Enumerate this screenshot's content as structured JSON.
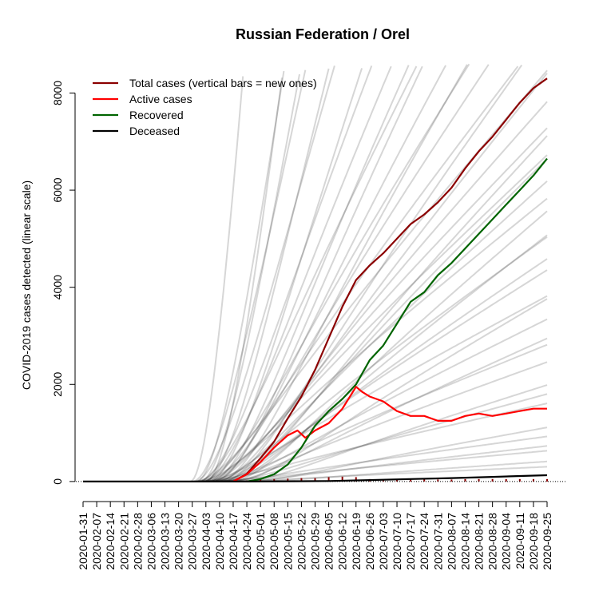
{
  "chart_data": {
    "type": "line",
    "title": "Russian Federation / Orel",
    "ylabel": "COVID-2019 cases detected (linear scale)",
    "xlabel": "",
    "y_scale": "linear",
    "ylim": [
      -150,
      8600
    ],
    "x_range": [
      "2020-01-31",
      "2020-09-25"
    ],
    "x_ticks": [
      "2020-01-31",
      "2020-02-07",
      "2020-02-14",
      "2020-02-21",
      "2020-02-28",
      "2020-03-06",
      "2020-03-13",
      "2020-03-20",
      "2020-03-27",
      "2020-04-03",
      "2020-04-10",
      "2020-04-17",
      "2020-04-24",
      "2020-05-01",
      "2020-05-08",
      "2020-05-15",
      "2020-05-22",
      "2020-05-29",
      "2020-06-05",
      "2020-06-12",
      "2020-06-19",
      "2020-06-26",
      "2020-07-03",
      "2020-07-10",
      "2020-07-17",
      "2020-07-24",
      "2020-07-31",
      "2020-08-07",
      "2020-08-14",
      "2020-08-21",
      "2020-08-28",
      "2020-09-04",
      "2020-09-11",
      "2020-09-18",
      "2020-09-25"
    ],
    "y_ticks": [
      0,
      2000,
      4000,
      6000,
      8000
    ],
    "legend_position": "top-left",
    "grid": false,
    "series": [
      {
        "name": "Total cases (vertical bars = new ones)",
        "color": "#8b0000",
        "points": [
          [
            "2020-04-17",
            0
          ],
          [
            "2020-04-24",
            160
          ],
          [
            "2020-05-01",
            480
          ],
          [
            "2020-05-08",
            820
          ],
          [
            "2020-05-15",
            1300
          ],
          [
            "2020-05-22",
            1750
          ],
          [
            "2020-05-29",
            2300
          ],
          [
            "2020-06-05",
            2950
          ],
          [
            "2020-06-12",
            3600
          ],
          [
            "2020-06-19",
            4150
          ],
          [
            "2020-06-26",
            4450
          ],
          [
            "2020-07-03",
            4700
          ],
          [
            "2020-07-10",
            5000
          ],
          [
            "2020-07-17",
            5300
          ],
          [
            "2020-07-24",
            5500
          ],
          [
            "2020-07-31",
            5750
          ],
          [
            "2020-08-07",
            6050
          ],
          [
            "2020-08-14",
            6450
          ],
          [
            "2020-08-21",
            6800
          ],
          [
            "2020-08-28",
            7100
          ],
          [
            "2020-09-04",
            7450
          ],
          [
            "2020-09-11",
            7800
          ],
          [
            "2020-09-18",
            8100
          ],
          [
            "2020-09-25",
            8300
          ]
        ]
      },
      {
        "name": "Active cases",
        "color": "#ff0000",
        "points": [
          [
            "2020-04-17",
            0
          ],
          [
            "2020-04-24",
            150
          ],
          [
            "2020-05-01",
            400
          ],
          [
            "2020-05-08",
            700
          ],
          [
            "2020-05-15",
            950
          ],
          [
            "2020-05-20",
            1050
          ],
          [
            "2020-05-24",
            900
          ],
          [
            "2020-05-29",
            1050
          ],
          [
            "2020-06-05",
            1200
          ],
          [
            "2020-06-12",
            1500
          ],
          [
            "2020-06-19",
            1950
          ],
          [
            "2020-06-22",
            1850
          ],
          [
            "2020-06-26",
            1750
          ],
          [
            "2020-07-03",
            1650
          ],
          [
            "2020-07-10",
            1450
          ],
          [
            "2020-07-17",
            1350
          ],
          [
            "2020-07-24",
            1350
          ],
          [
            "2020-07-31",
            1250
          ],
          [
            "2020-08-07",
            1250
          ],
          [
            "2020-08-14",
            1350
          ],
          [
            "2020-08-21",
            1400
          ],
          [
            "2020-08-28",
            1350
          ],
          [
            "2020-09-04",
            1400
          ],
          [
            "2020-09-11",
            1450
          ],
          [
            "2020-09-18",
            1500
          ],
          [
            "2020-09-25",
            1500
          ]
        ]
      },
      {
        "name": "Recovered",
        "color": "#006400",
        "points": [
          [
            "2020-04-24",
            0
          ],
          [
            "2020-05-01",
            50
          ],
          [
            "2020-05-08",
            150
          ],
          [
            "2020-05-15",
            350
          ],
          [
            "2020-05-22",
            700
          ],
          [
            "2020-05-29",
            1150
          ],
          [
            "2020-06-05",
            1450
          ],
          [
            "2020-06-12",
            1700
          ],
          [
            "2020-06-19",
            2000
          ],
          [
            "2020-06-26",
            2500
          ],
          [
            "2020-07-03",
            2800
          ],
          [
            "2020-07-10",
            3250
          ],
          [
            "2020-07-17",
            3700
          ],
          [
            "2020-07-24",
            3900
          ],
          [
            "2020-07-31",
            4250
          ],
          [
            "2020-08-07",
            4500
          ],
          [
            "2020-08-14",
            4800
          ],
          [
            "2020-08-21",
            5100
          ],
          [
            "2020-08-28",
            5400
          ],
          [
            "2020-09-04",
            5700
          ],
          [
            "2020-09-11",
            6000
          ],
          [
            "2020-09-18",
            6300
          ],
          [
            "2020-09-25",
            6650
          ]
        ]
      },
      {
        "name": "Deceased",
        "color": "#000000",
        "points": [
          [
            "2020-01-31",
            0
          ],
          [
            "2020-04-24",
            0
          ],
          [
            "2020-05-15",
            5
          ],
          [
            "2020-06-05",
            10
          ],
          [
            "2020-06-26",
            30
          ],
          [
            "2020-07-17",
            50
          ],
          [
            "2020-08-07",
            70
          ],
          [
            "2020-08-28",
            95
          ],
          [
            "2020-09-25",
            130
          ]
        ]
      }
    ],
    "new_cases_bars": {
      "color": "#8b0000",
      "points": [
        [
          "2020-04-24",
          20
        ],
        [
          "2020-05-01",
          40
        ],
        [
          "2020-05-08",
          50
        ],
        [
          "2020-05-15",
          60
        ],
        [
          "2020-05-22",
          70
        ],
        [
          "2020-05-29",
          70
        ],
        [
          "2020-06-05",
          90
        ],
        [
          "2020-06-12",
          100
        ],
        [
          "2020-06-19",
          90
        ],
        [
          "2020-06-26",
          50
        ],
        [
          "2020-07-03",
          40
        ],
        [
          "2020-07-10",
          40
        ],
        [
          "2020-07-17",
          40
        ],
        [
          "2020-07-24",
          40
        ],
        [
          "2020-07-31",
          40
        ],
        [
          "2020-08-07",
          40
        ],
        [
          "2020-08-14",
          50
        ],
        [
          "2020-08-21",
          50
        ],
        [
          "2020-08-28",
          50
        ],
        [
          "2020-09-04",
          50
        ],
        [
          "2020-09-11",
          50
        ],
        [
          "2020-09-18",
          50
        ],
        [
          "2020-09-25",
          50
        ]
      ]
    },
    "background_curves": {
      "color": "#000000",
      "opacity": 0.16,
      "slopes_per_day": [
        520,
        300,
        250,
        210,
        180,
        160,
        140,
        125,
        110,
        100,
        95,
        90,
        85,
        80,
        75,
        70,
        66,
        62,
        58,
        55,
        52,
        50,
        48,
        46,
        44,
        42,
        40,
        38,
        36,
        34,
        32,
        30,
        28,
        26,
        24,
        22,
        20,
        18,
        16,
        14,
        12,
        10,
        8,
        6,
        5,
        4,
        3,
        2
      ],
      "start_offsets_days": [
        0,
        8,
        3,
        5,
        1,
        7,
        2,
        9,
        4,
        6,
        10,
        12,
        3,
        11,
        14,
        6,
        8,
        16,
        4,
        13,
        2,
        9,
        18,
        7,
        15,
        5,
        11,
        20,
        3,
        17,
        8,
        13,
        10,
        22,
        6,
        14,
        19,
        9,
        12,
        25,
        16,
        4,
        28,
        11,
        20,
        7,
        30,
        14
      ]
    }
  }
}
